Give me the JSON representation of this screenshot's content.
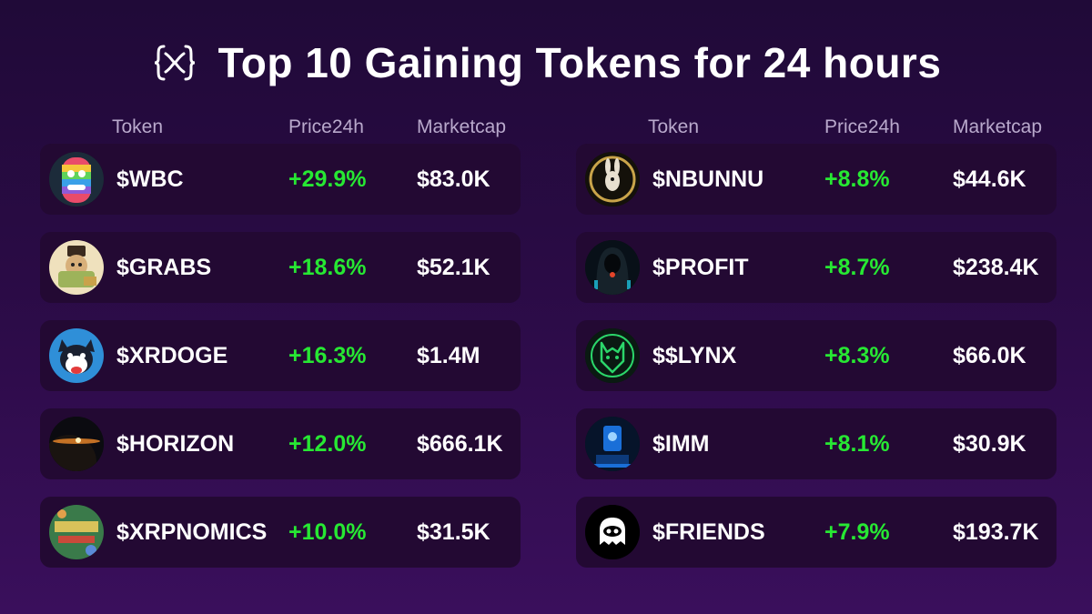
{
  "header": {
    "title": "Top 10 Gaining Tokens for 24 hours",
    "logo_icon": "xrp-x-logo-icon"
  },
  "columns": {
    "token": "Token",
    "price": "Price24h",
    "marketcap": "Marketcap"
  },
  "colors": {
    "background": "#2a0b45",
    "row_background": "#230933",
    "gain_green": "#27e833",
    "header_muted": "#b9a9cc"
  },
  "left_tokens": [
    {
      "name": "$WBC",
      "change": "+29.9%",
      "marketcap": "$83.0K",
      "icon": "rainbow-face-avatar-icon"
    },
    {
      "name": "$GRABS",
      "change": "+18.6%",
      "marketcap": "$52.1K",
      "icon": "money-cartoon-avatar-icon"
    },
    {
      "name": "$XRDOGE",
      "change": "+16.3%",
      "marketcap": "$1.4M",
      "icon": "doge-avatar-icon"
    },
    {
      "name": "$HORIZON",
      "change": "+12.0%",
      "marketcap": "$666.1K",
      "icon": "planet-horizon-avatar-icon"
    },
    {
      "name": "$XRPNOMICS",
      "change": "+10.0%",
      "marketcap": "$31.5K",
      "icon": "xrpnomics-comic-avatar-icon"
    }
  ],
  "right_tokens": [
    {
      "name": "$NBUNNU",
      "change": "+8.8%",
      "marketcap": "$44.6K",
      "icon": "bunny-emblem-avatar-icon"
    },
    {
      "name": "$PROFIT",
      "change": "+8.7%",
      "marketcap": "$238.4K",
      "icon": "hooded-figure-avatar-icon"
    },
    {
      "name": "$$LYNX",
      "change": "+8.3%",
      "marketcap": "$66.0K",
      "icon": "lynx-head-avatar-icon"
    },
    {
      "name": "$IMM",
      "change": "+8.1%",
      "marketcap": "$30.9K",
      "icon": "blue-screen-avatar-icon"
    },
    {
      "name": "$FRIENDS",
      "change": "+7.9%",
      "marketcap": "$193.7K",
      "icon": "ghost-mask-avatar-icon"
    }
  ]
}
